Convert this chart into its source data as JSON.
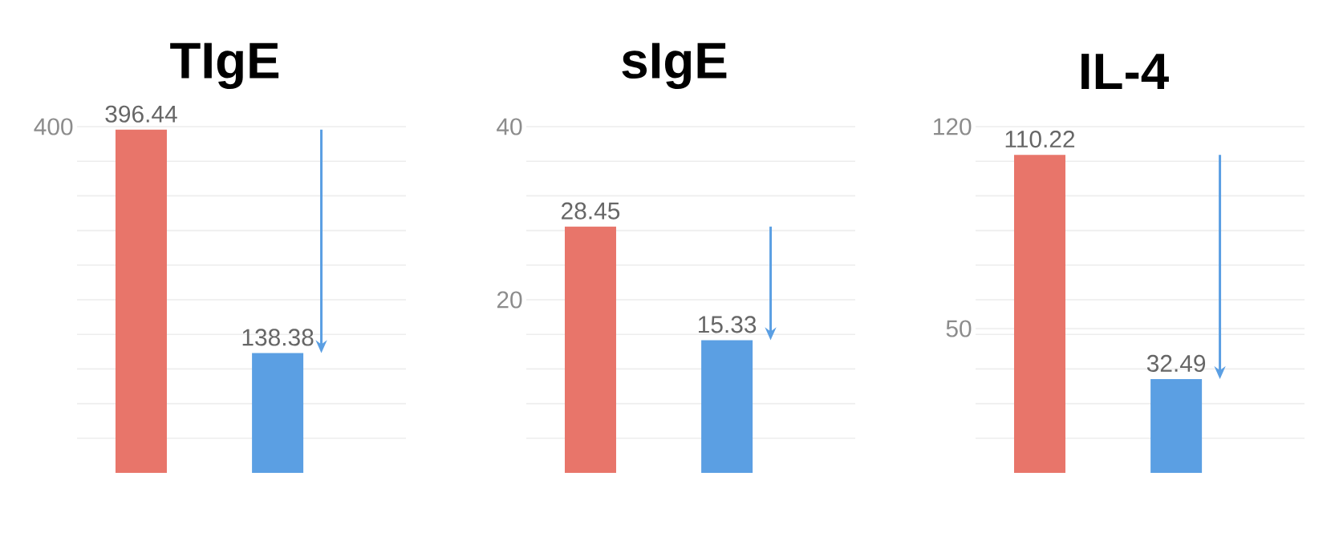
{
  "chart_data": [
    {
      "type": "bar",
      "title": "TIgE",
      "categories": [
        null,
        null
      ],
      "values": [
        396.44,
        138.38
      ],
      "colors": [
        "#e8756a",
        "#5b9fe3"
      ],
      "data_labels": true,
      "grid": "y",
      "tick_labels": "y",
      "ylim": [
        0,
        400
      ],
      "yticks": [
        {
          "value": 40,
          "label": null
        },
        {
          "value": 80,
          "label": null
        },
        {
          "value": 120,
          "label": null
        },
        {
          "value": 160,
          "label": null
        },
        {
          "value": 200,
          "label": null
        },
        {
          "value": 240,
          "label": null
        },
        {
          "value": 280,
          "label": null
        },
        {
          "value": 320,
          "label": null
        },
        {
          "value": 360,
          "label": null
        },
        400
      ]
    },
    {
      "type": "bar",
      "title": "sIgE",
      "categories": [
        null,
        null
      ],
      "values": [
        28.45,
        15.33
      ],
      "colors": [
        "#e8756a",
        "#5b9fe3"
      ],
      "data_labels": true,
      "grid": "y",
      "tick_labels": "y",
      "ylim": [
        0,
        40
      ],
      "yticks": [
        {
          "value": 4,
          "label": null
        },
        {
          "value": 8,
          "label": null
        },
        {
          "value": 12,
          "label": null
        },
        {
          "value": 16,
          "label": null
        },
        20,
        {
          "value": 24,
          "label": null
        },
        {
          "value": 28,
          "label": null
        },
        {
          "value": 32,
          "label": null
        },
        {
          "value": 36,
          "label": null
        },
        40
      ]
    },
    {
      "type": "bar",
      "title": "IL-4",
      "categories": [
        null,
        null
      ],
      "values": [
        110.22,
        32.49
      ],
      "colors": [
        "#e8756a",
        "#5b9fe3"
      ],
      "data_labels": true,
      "grid": "y",
      "tick_labels": "y",
      "ylim": [
        0,
        120
      ],
      "yticks": [
        {
          "value": 12,
          "label": null
        },
        {
          "value": 24,
          "label": null
        },
        {
          "value": 36,
          "label": null
        },
        {
          "value": 48,
          "label": null
        },
        50,
        {
          "value": 60,
          "label": null
        },
        {
          "value": 72,
          "label": null
        },
        {
          "value": 84,
          "label": null
        },
        {
          "value": 96,
          "label": null
        },
        {
          "value": 108,
          "label": null
        },
        120
      ]
    }
  ]
}
